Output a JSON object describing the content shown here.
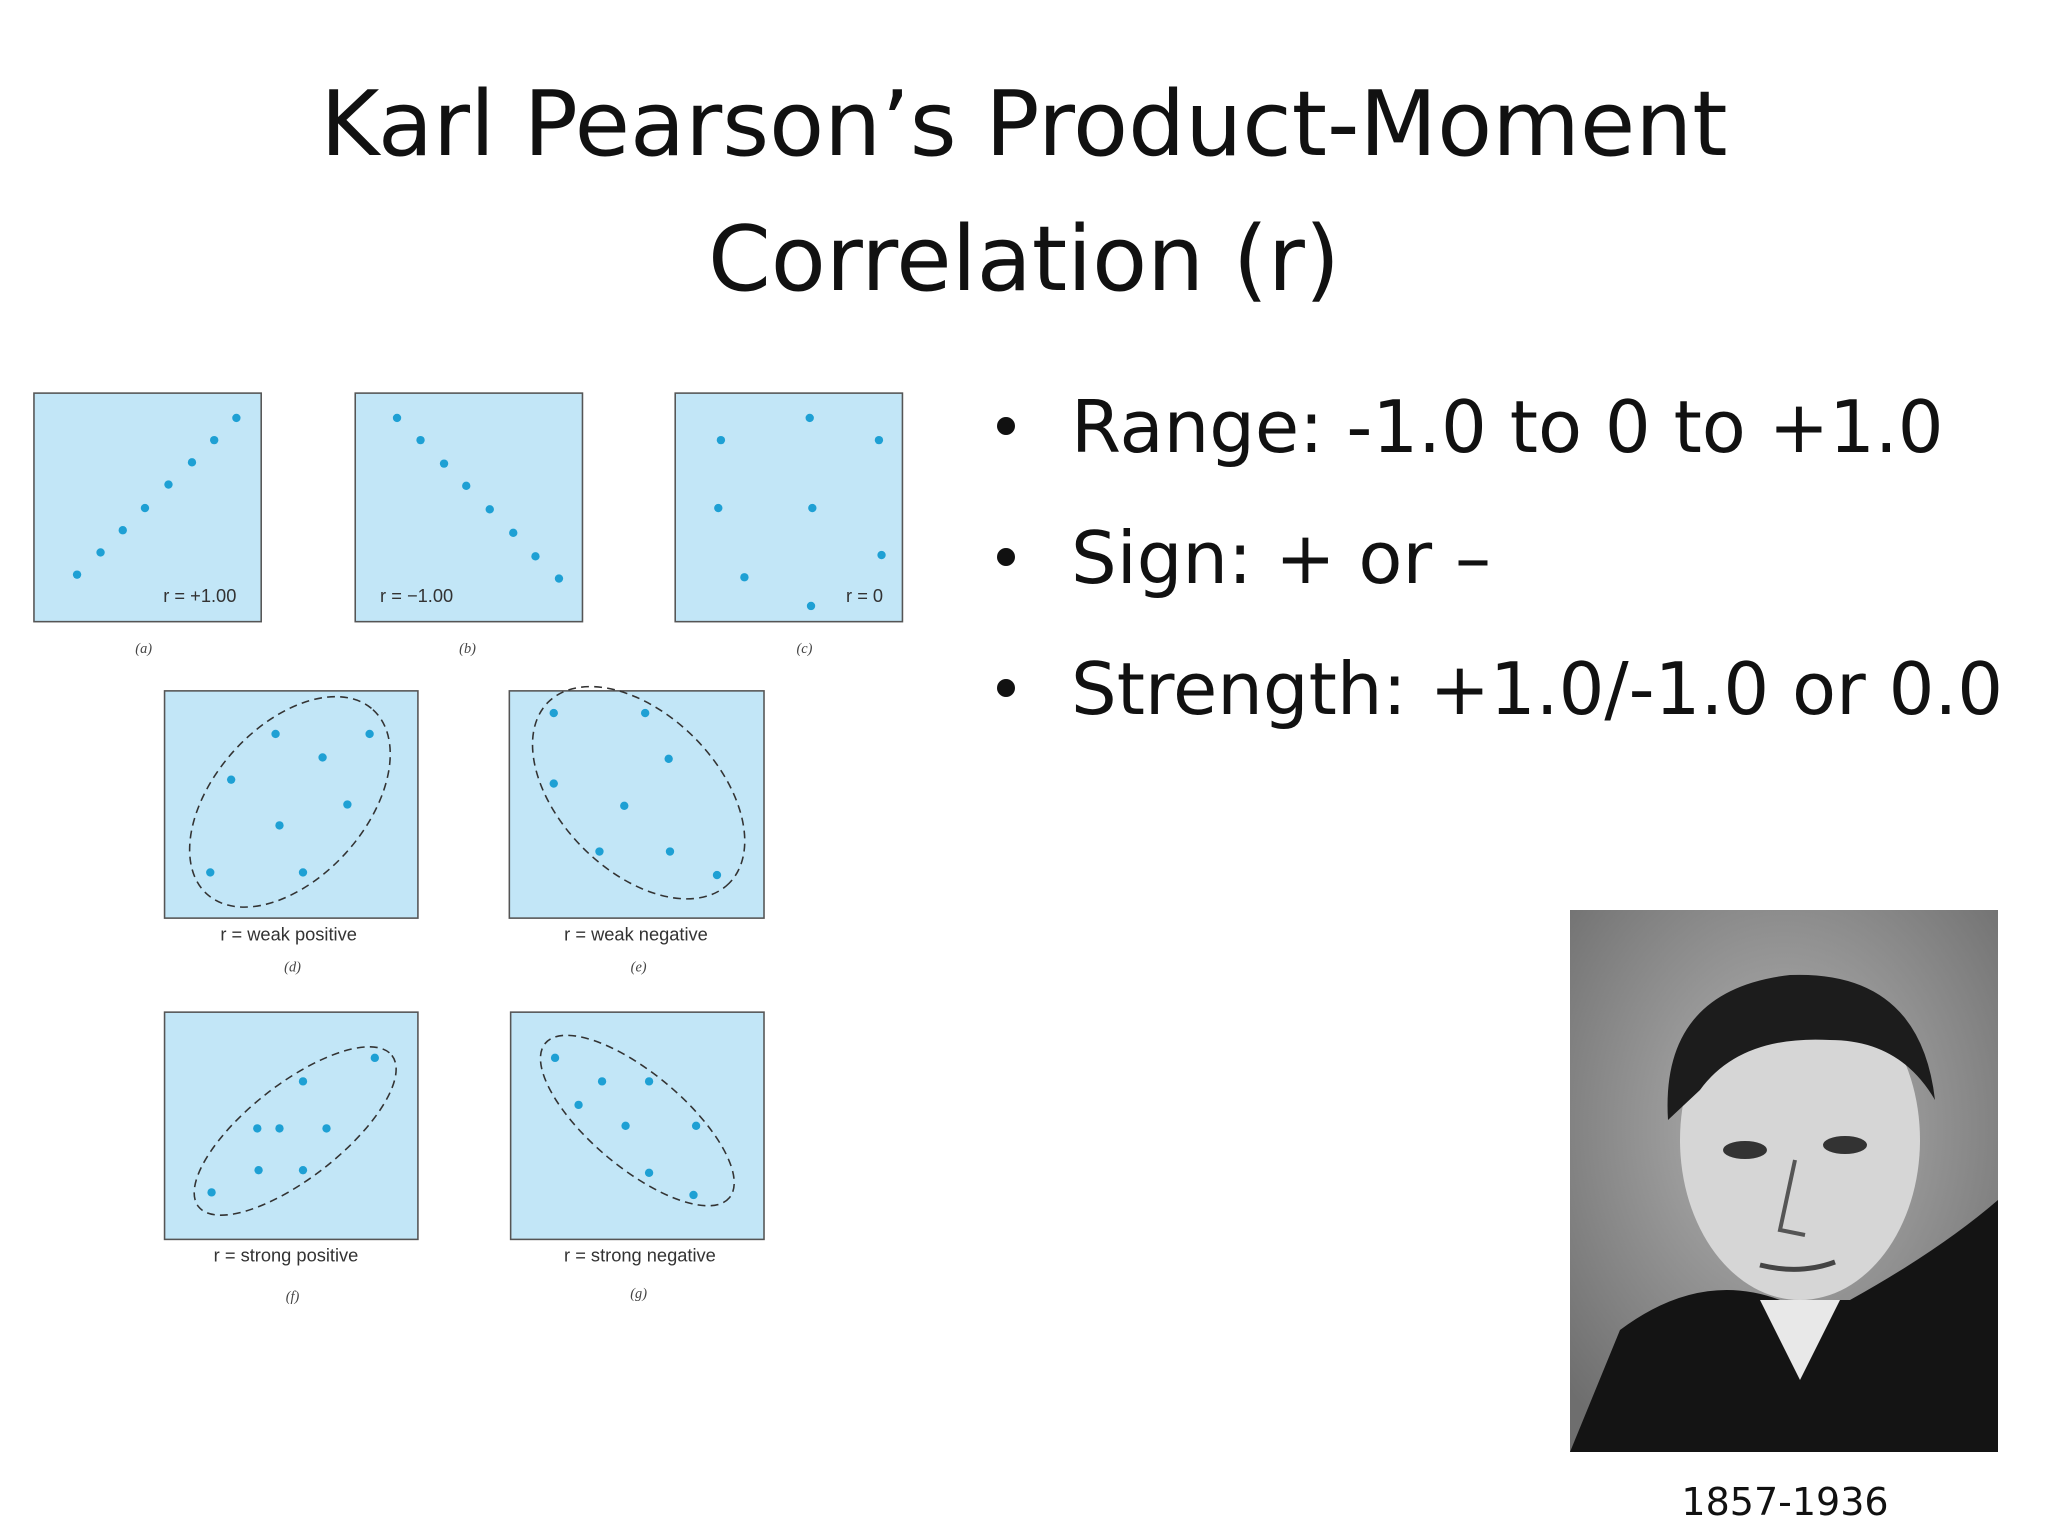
{
  "title": {
    "lines": [
      "Karl Pearson’s Product-Moment",
      "Correlation (r)"
    ]
  },
  "bullets": [
    "Range: -1.0 to 0 to +1.0",
    "Sign: + or –",
    "Strength: +1.0/-1.0 or 0.0"
  ],
  "figure": {
    "panels": [
      {
        "label": "r = +1.00",
        "tag": "(a)"
      },
      {
        "label": "r = −1.00",
        "tag": "(b)"
      },
      {
        "label": "r = 0",
        "tag": "(c)"
      },
      {
        "caption": "r = weak positive",
        "tag": "(d)"
      },
      {
        "caption": "r = weak negative",
        "tag": "(e)"
      },
      {
        "caption": "r = strong positive",
        "tag": "(f)"
      },
      {
        "caption": "r = strong negative",
        "tag": "(g)"
      }
    ]
  },
  "portrait": {
    "caption": "1857-1936"
  }
}
